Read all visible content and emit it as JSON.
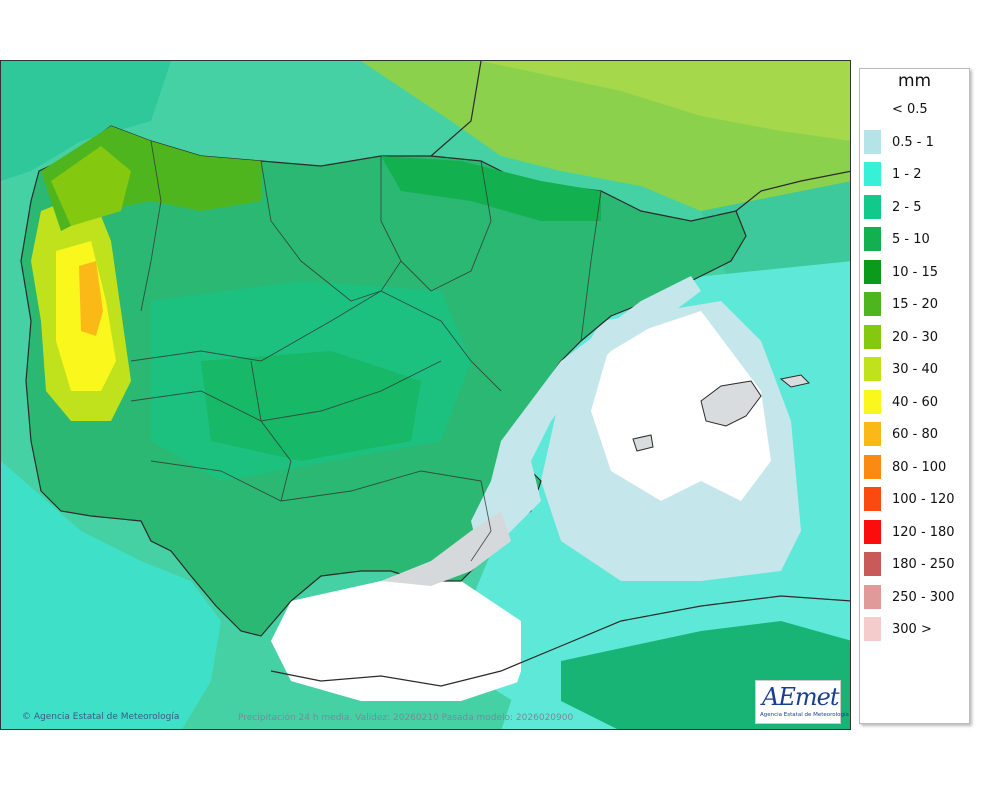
{
  "map": {
    "credit": "Agencia Estatal de Meteorología",
    "validity": "Precipitación 24 h media. Validez: 20260210 Pasada modelo: 2026020900",
    "logo_mark": "AEmet",
    "logo_sub": "Agencia Estatal de Meteorología",
    "copyright_icon": "copyright-icon"
  },
  "legend": {
    "unit": "mm",
    "items": [
      {
        "label": "< 0.5",
        "color": "#ffffff"
      },
      {
        "label": "0.5 - 1",
        "color": "#b5e3e8"
      },
      {
        "label": "1 - 2",
        "color": "#36f0d8"
      },
      {
        "label": "2 - 5",
        "color": "#10c98a"
      },
      {
        "label": "5 - 10",
        "color": "#12b04e"
      },
      {
        "label": "10 - 15",
        "color": "#0a9a1c"
      },
      {
        "label": "15 - 20",
        "color": "#4fb51f"
      },
      {
        "label": "20 - 30",
        "color": "#84c80f"
      },
      {
        "label": "30 - 40",
        "color": "#c0e21c"
      },
      {
        "label": "40 - 60",
        "color": "#f9f71c"
      },
      {
        "label": "60 - 80",
        "color": "#fbb918"
      },
      {
        "label": "80 - 100",
        "color": "#fb8a12"
      },
      {
        "label": "100 - 120",
        "color": "#fb4a0e"
      },
      {
        "label": "120 - 180",
        "color": "#fb0d0d"
      },
      {
        "label": "180 - 250",
        "color": "#c95a5a"
      },
      {
        "label": "250 - 300",
        "color": "#e09a9a"
      },
      {
        "label": "300 >",
        "color": "#f5cccc"
      }
    ]
  }
}
